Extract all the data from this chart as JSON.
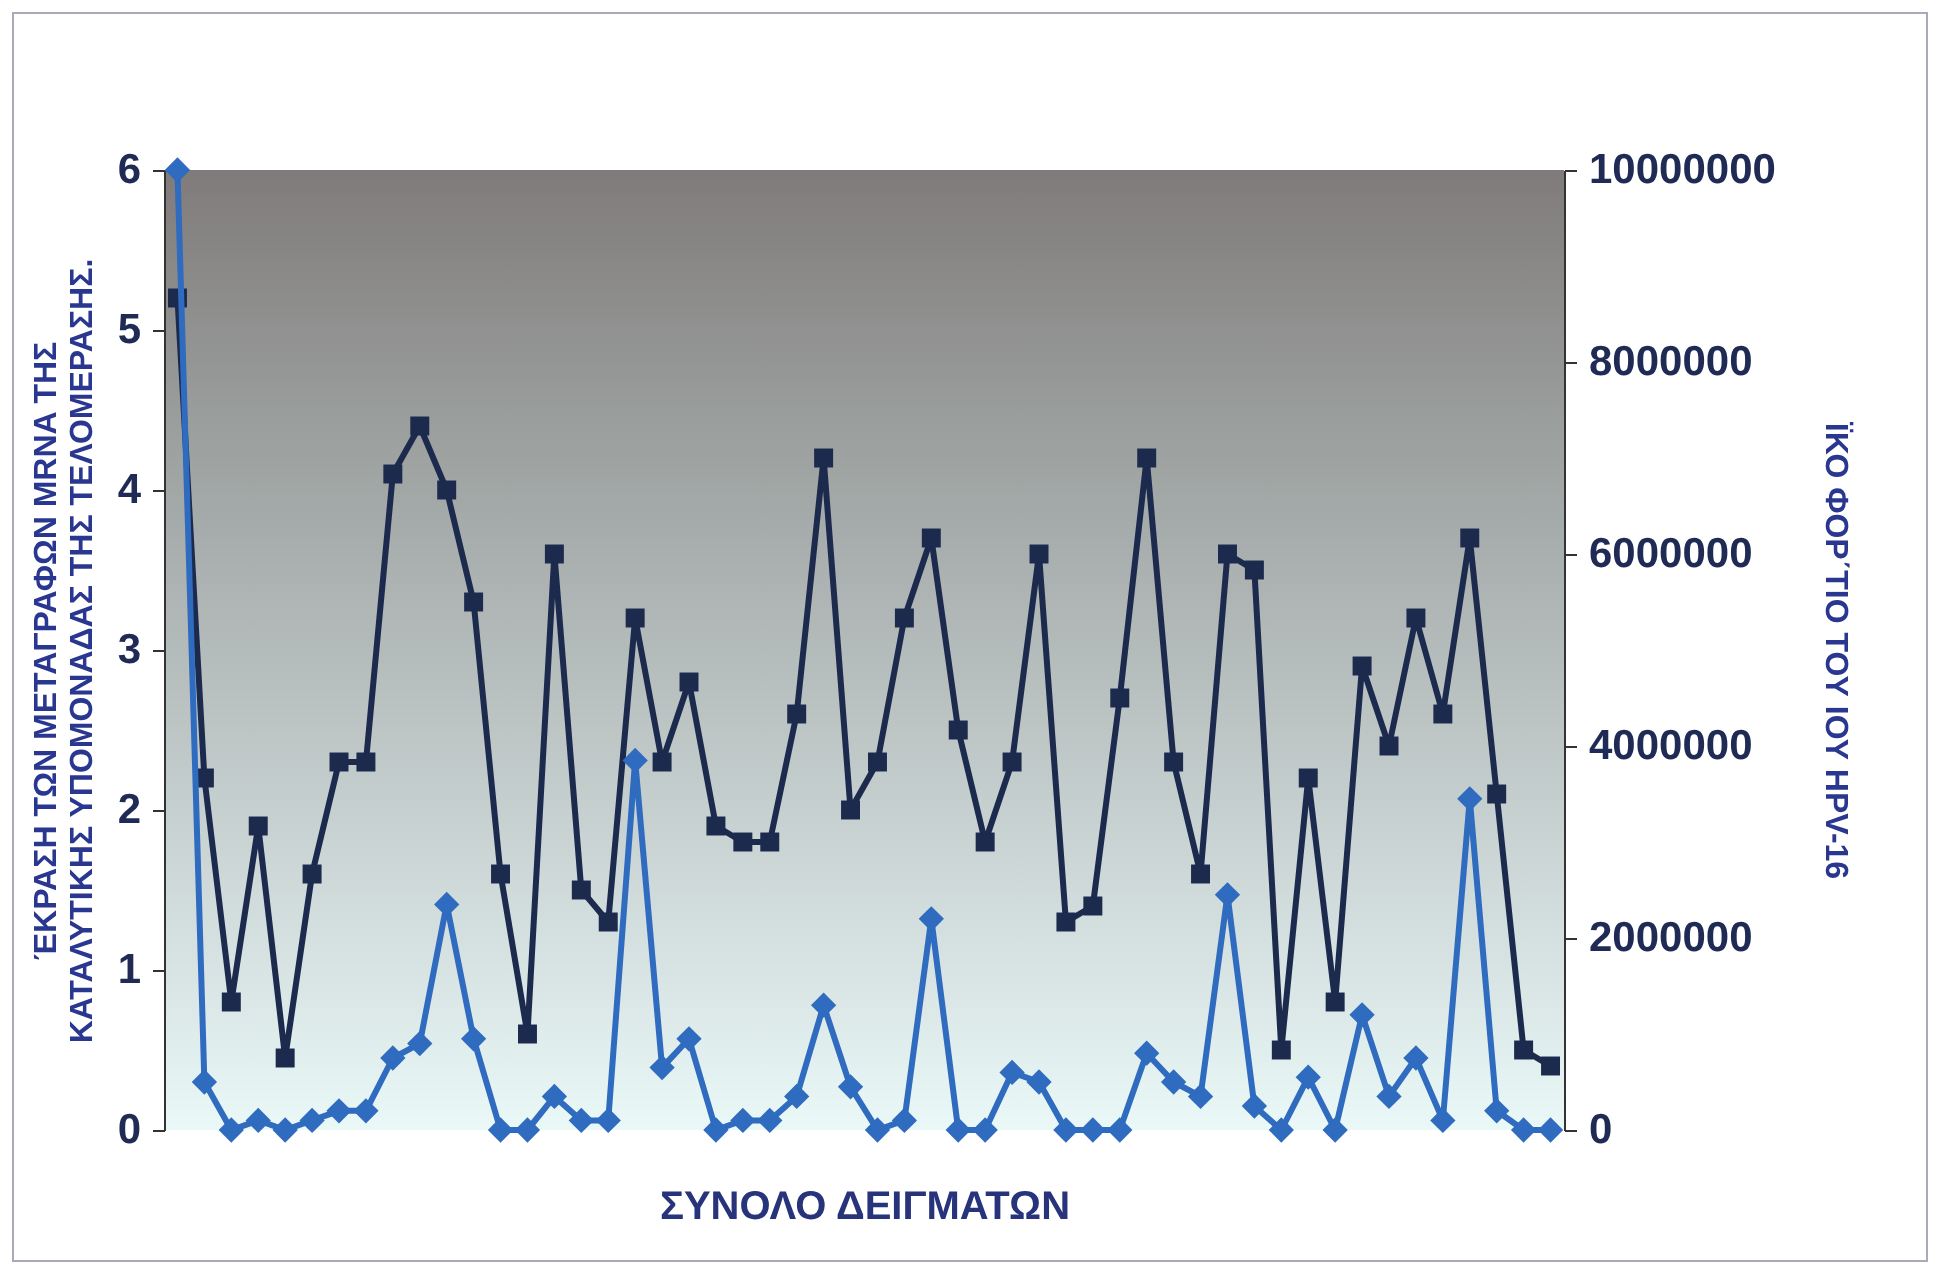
{
  "chart_data": {
    "type": "line",
    "xlabel": "ΣΥΝΟΛΟ ΔΕΙΓΜΑΤΩΝ",
    "ylabel": "ΈΚΡΑΣΗ ΤΩΝ ΜΕΤΑΓΡΑΦΩΝ MRNA ΤΗΣ\nΚΑΤΑΛΥΤΙΚΗΣ ΥΠΟΜΟΝΑΔΑΣ ΤΗΣ ΤΕΛΟΜΕΡΑΣΗΣ.",
    "y2label": "ΪΚΟ ΦΟΡ΄ΤΙΟ ΤΟΥ ΙΟΥ HPV-16",
    "categories": [
      null,
      null,
      null,
      null,
      null,
      null,
      null,
      null,
      null,
      null,
      null,
      null,
      null,
      null,
      null,
      null,
      null,
      null,
      null,
      null,
      null,
      null,
      null,
      null,
      null,
      null,
      null,
      null,
      null,
      null,
      null,
      null,
      null,
      null,
      null,
      null,
      null,
      null,
      null,
      null,
      null,
      null,
      null,
      null,
      null,
      null,
      null,
      null,
      null,
      null,
      null,
      null
    ],
    "ylim": [
      0,
      6
    ],
    "yticks": [
      0,
      1,
      2,
      3,
      4,
      5,
      6
    ],
    "y2lim": [
      0,
      10000000
    ],
    "y2ticks": [
      0,
      2000000,
      4000000,
      6000000,
      8000000,
      10000000
    ],
    "grid": false,
    "series": [
      {
        "color": "#1c2a4e",
        "marker": "square",
        "values": [
          5.2,
          2.2,
          0.8,
          1.9,
          0.45,
          1.6,
          2.3,
          2.3,
          4.1,
          4.4,
          4.0,
          3.3,
          1.6,
          0.6,
          3.6,
          1.5,
          1.3,
          3.2,
          2.3,
          2.8,
          1.9,
          1.8,
          1.8,
          2.6,
          4.2,
          2.0,
          2.3,
          3.2,
          3.7,
          2.5,
          1.8,
          2.3,
          3.6,
          1.3,
          1.4,
          2.7,
          4.2,
          2.3,
          1.6,
          3.6,
          3.5,
          0.5,
          2.2,
          0.8,
          2.9,
          2.4,
          3.2,
          2.6,
          3.7,
          2.1,
          0.5,
          0.4
        ]
      },
      {
        "color": "#2f6bbf",
        "marker": "diamond",
        "axis": "y2",
        "values": [
          10000000,
          500000,
          0,
          100000,
          0,
          100000,
          200000,
          200000,
          750000,
          900000,
          2350000,
          950000,
          0,
          0,
          350000,
          100000,
          100000,
          3850000,
          650000,
          950000,
          0,
          100000,
          100000,
          350000,
          1300000,
          450000,
          0,
          100000,
          2200000,
          0,
          0,
          600000,
          500000,
          0,
          0,
          0,
          800000,
          500000,
          350000,
          2450000,
          250000,
          0,
          550000,
          0,
          1200000,
          350000,
          750000,
          100000,
          3450000,
          200000,
          0,
          0
        ]
      }
    ]
  }
}
